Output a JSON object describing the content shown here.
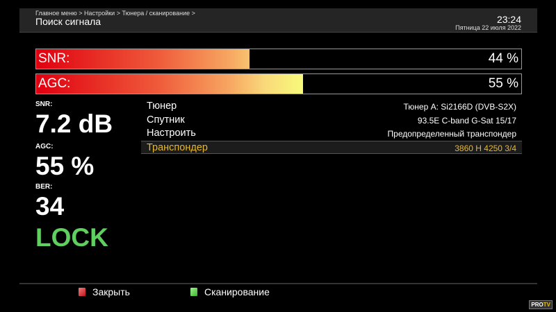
{
  "header": {
    "breadcrumb": "Главное меню > Настройки > Тюнера / сканирование >",
    "title": "Поиск сигнала",
    "time": "23:24",
    "date": "Пятница 22 июля 2022"
  },
  "bars": [
    {
      "label": "SNR:",
      "value": 44,
      "text": "44 %"
    },
    {
      "label": "AGC:",
      "value": 55,
      "text": "55 %"
    }
  ],
  "stats": {
    "snr_label": "SNR:",
    "snr_value": "7.2 dB",
    "agc_label": "AGC:",
    "agc_value": "55 %",
    "ber_label": "BER:",
    "ber_value": "34",
    "status": "LOCK"
  },
  "list": [
    {
      "key": "Тюнер",
      "value": "Тюнер A: Si2166D (DVB-S2X)"
    },
    {
      "key": "Спутник",
      "value": "93.5E C-band G-Sat 15/17"
    },
    {
      "key": "Настроить",
      "value": "Предопределенный транспондер"
    },
    {
      "key": "Транспондер",
      "value": "3860 H 4250 3/4",
      "selected": true
    }
  ],
  "footer": {
    "close": "Закрыть",
    "scan": "Сканирование",
    "close_color": "#c8101a",
    "scan_color": "#3cb82c"
  },
  "logo": "PRO TV"
}
